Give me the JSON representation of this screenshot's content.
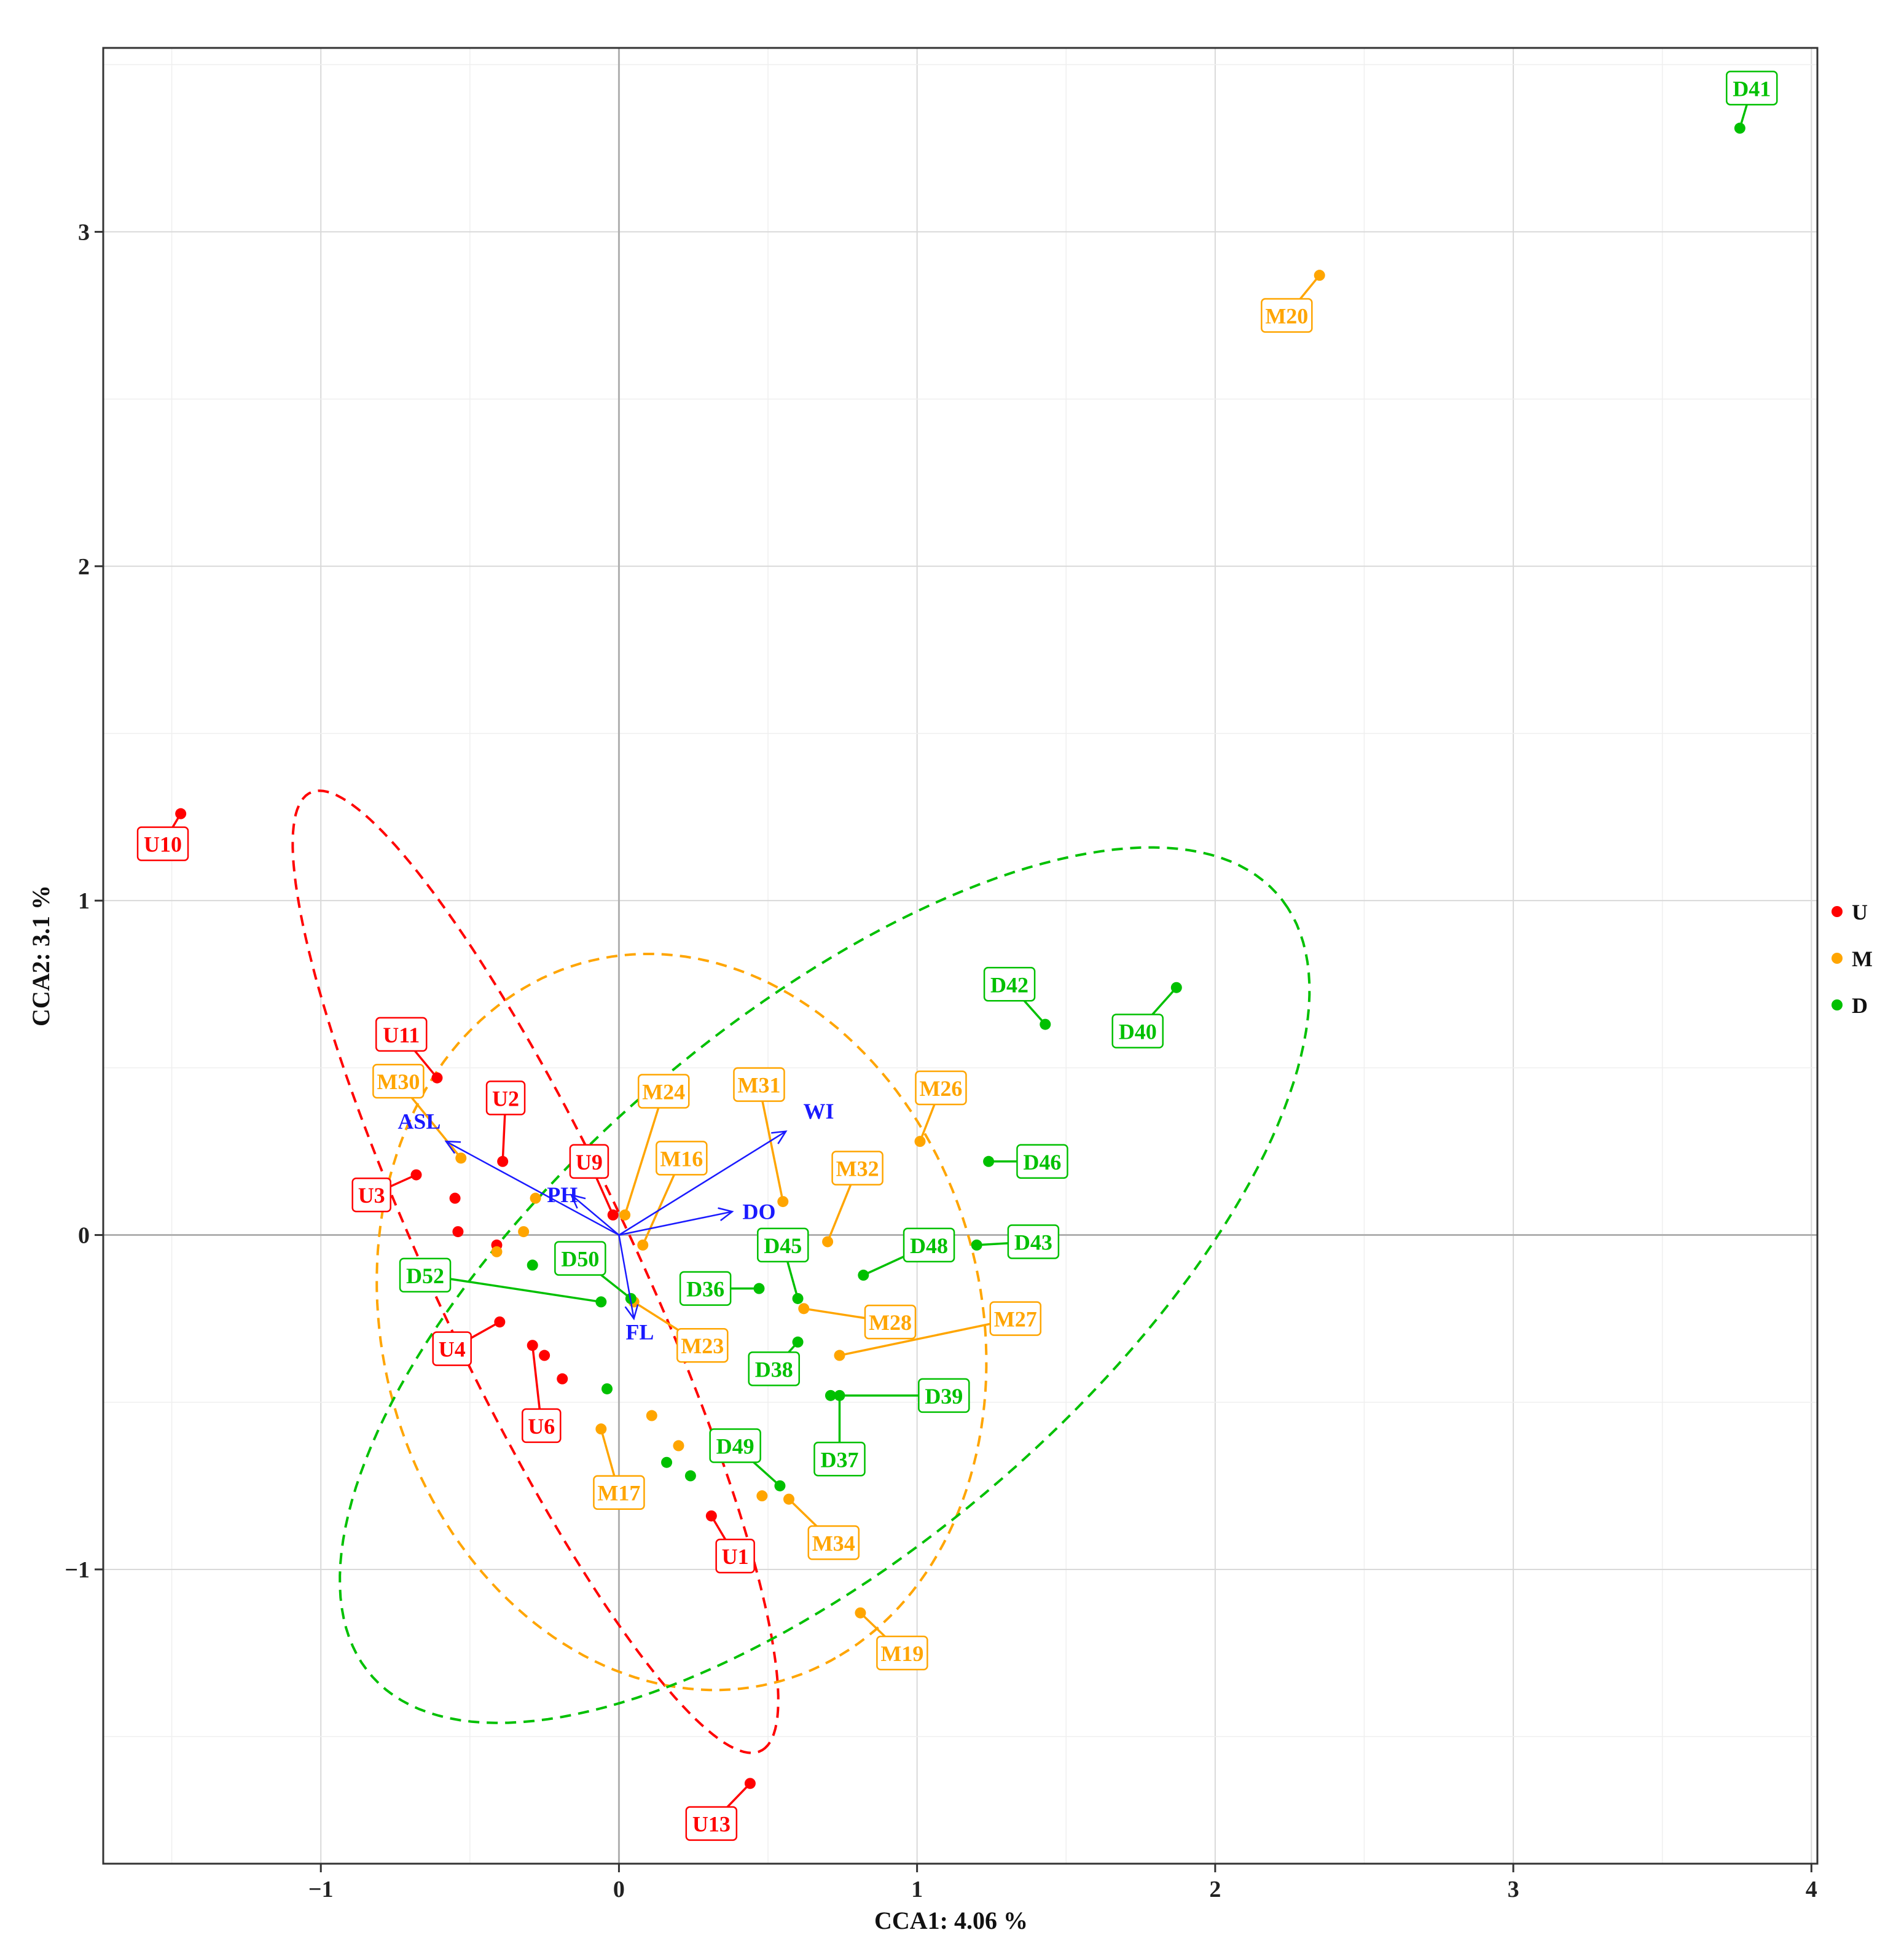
{
  "chart_data": {
    "type": "scatter",
    "title": "",
    "xlabel": "CCA1: 4.06 %",
    "ylabel": "CCA2: 3.1 %",
    "xlim": [
      -1.73,
      4.02
    ],
    "ylim": [
      -1.88,
      3.55
    ],
    "xticks": [
      -1,
      0,
      1,
      2,
      3,
      4
    ],
    "xtick_labels": [
      "−1",
      "0",
      "1",
      "2",
      "3",
      "4"
    ],
    "yticks": [
      -1,
      0,
      1,
      2,
      3
    ],
    "ytick_labels": [
      "−1",
      "0",
      "1",
      "2",
      "3"
    ],
    "grid": true,
    "legend_position": "right",
    "groups": [
      {
        "name": "U",
        "color": "#ff0000"
      },
      {
        "name": "M",
        "color": "#ffa500"
      },
      {
        "name": "D",
        "color": "#00c000"
      }
    ],
    "points": [
      {
        "g": "U",
        "x": -1.47,
        "y": 1.26,
        "label": "U10",
        "lx": -1.53,
        "ly": 1.17
      },
      {
        "g": "U",
        "x": -0.61,
        "y": 0.47,
        "label": "U11",
        "lx": -0.73,
        "ly": 0.6
      },
      {
        "g": "U",
        "x": -0.39,
        "y": 0.22,
        "label": "U2",
        "lx": -0.38,
        "ly": 0.41
      },
      {
        "g": "U",
        "x": -0.68,
        "y": 0.18,
        "label": "U3",
        "lx": -0.83,
        "ly": 0.12
      },
      {
        "g": "U",
        "x": -0.55,
        "y": 0.11,
        "label": "",
        "lx": null,
        "ly": null
      },
      {
        "g": "U",
        "x": -0.54,
        "y": 0.01,
        "label": "",
        "lx": null,
        "ly": null
      },
      {
        "g": "U",
        "x": -0.41,
        "y": -0.03,
        "label": "",
        "lx": null,
        "ly": null
      },
      {
        "g": "U",
        "x": -0.02,
        "y": 0.06,
        "label": "U9",
        "lx": -0.1,
        "ly": 0.22
      },
      {
        "g": "U",
        "x": -0.4,
        "y": -0.26,
        "label": "U4",
        "lx": -0.56,
        "ly": -0.34
      },
      {
        "g": "U",
        "x": -0.29,
        "y": -0.33,
        "label": "U6",
        "lx": -0.26,
        "ly": -0.57
      },
      {
        "g": "U",
        "x": -0.25,
        "y": -0.36,
        "label": "",
        "lx": null,
        "ly": null
      },
      {
        "g": "U",
        "x": -0.19,
        "y": -0.43,
        "label": "",
        "lx": null,
        "ly": null
      },
      {
        "g": "U",
        "x": 0.31,
        "y": -0.84,
        "label": "U1",
        "lx": 0.39,
        "ly": -0.96
      },
      {
        "g": "U",
        "x": 0.44,
        "y": -1.64,
        "label": "U13",
        "lx": 0.31,
        "ly": -1.76
      },
      {
        "g": "M",
        "x": 2.35,
        "y": 2.87,
        "label": "M20",
        "lx": 2.24,
        "ly": 2.75
      },
      {
        "g": "M",
        "x": -0.53,
        "y": 0.23,
        "label": "M30",
        "lx": -0.74,
        "ly": 0.46
      },
      {
        "g": "M",
        "x": 0.02,
        "y": 0.06,
        "label": "M24",
        "lx": 0.15,
        "ly": 0.43
      },
      {
        "g": "M",
        "x": 0.55,
        "y": 0.1,
        "label": "M31",
        "lx": 0.47,
        "ly": 0.45
      },
      {
        "g": "M",
        "x": 1.01,
        "y": 0.28,
        "label": "M26",
        "lx": 1.08,
        "ly": 0.44
      },
      {
        "g": "M",
        "x": 0.08,
        "y": -0.03,
        "label": "M16",
        "lx": 0.21,
        "ly": 0.23
      },
      {
        "g": "M",
        "x": 0.7,
        "y": -0.02,
        "label": "M32",
        "lx": 0.8,
        "ly": 0.2
      },
      {
        "g": "M",
        "x": -0.28,
        "y": 0.11,
        "label": "",
        "lx": null,
        "ly": null
      },
      {
        "g": "M",
        "x": -0.32,
        "y": 0.01,
        "label": "",
        "lx": null,
        "ly": null
      },
      {
        "g": "M",
        "x": -0.41,
        "y": -0.05,
        "label": "",
        "lx": null,
        "ly": null
      },
      {
        "g": "M",
        "x": 0.05,
        "y": -0.2,
        "label": "M23",
        "lx": 0.28,
        "ly": -0.33
      },
      {
        "g": "M",
        "x": 0.62,
        "y": -0.22,
        "label": "M28",
        "lx": 0.91,
        "ly": -0.26
      },
      {
        "g": "M",
        "x": 0.74,
        "y": -0.36,
        "label": "M27",
        "lx": 1.33,
        "ly": -0.25
      },
      {
        "g": "M",
        "x": 0.11,
        "y": -0.54,
        "label": "",
        "lx": null,
        "ly": null
      },
      {
        "g": "M",
        "x": 0.2,
        "y": -0.63,
        "label": "",
        "lx": null,
        "ly": null
      },
      {
        "g": "M",
        "x": -0.06,
        "y": -0.58,
        "label": "M17",
        "lx": 0.0,
        "ly": -0.77
      },
      {
        "g": "M",
        "x": 0.48,
        "y": -0.78,
        "label": "",
        "lx": null,
        "ly": null
      },
      {
        "g": "M",
        "x": 0.57,
        "y": -0.79,
        "label": "M34",
        "lx": 0.72,
        "ly": -0.92
      },
      {
        "g": "M",
        "x": 0.81,
        "y": -1.13,
        "label": "M19",
        "lx": 0.95,
        "ly": -1.25
      },
      {
        "g": "D",
        "x": 3.76,
        "y": 3.31,
        "label": "D41",
        "lx": 3.8,
        "ly": 3.43
      },
      {
        "g": "D",
        "x": 1.43,
        "y": 0.63,
        "label": "D42",
        "lx": 1.31,
        "ly": 0.75
      },
      {
        "g": "D",
        "x": 1.87,
        "y": 0.74,
        "label": "D40",
        "lx": 1.74,
        "ly": 0.61
      },
      {
        "g": "D",
        "x": 1.24,
        "y": 0.22,
        "label": "D46",
        "lx": 1.42,
        "ly": 0.22
      },
      {
        "g": "D",
        "x": 1.2,
        "y": -0.03,
        "label": "D43",
        "lx": 1.39,
        "ly": -0.02
      },
      {
        "g": "D",
        "x": 0.82,
        "y": -0.12,
        "label": "D48",
        "lx": 1.04,
        "ly": -0.03
      },
      {
        "g": "D",
        "x": 0.6,
        "y": -0.19,
        "label": "D45",
        "lx": 0.55,
        "ly": -0.03
      },
      {
        "g": "D",
        "x": 0.47,
        "y": -0.16,
        "label": "D36",
        "lx": 0.29,
        "ly": -0.16
      },
      {
        "g": "D",
        "x": -0.29,
        "y": -0.09,
        "label": "",
        "lx": null,
        "ly": null
      },
      {
        "g": "D",
        "x": -0.06,
        "y": -0.2,
        "label": "D52",
        "lx": -0.65,
        "ly": -0.12
      },
      {
        "g": "D",
        "x": 0.04,
        "y": -0.19,
        "label": "D50",
        "lx": -0.13,
        "ly": -0.07
      },
      {
        "g": "D",
        "x": 0.6,
        "y": -0.32,
        "label": "D38",
        "lx": 0.52,
        "ly": -0.4
      },
      {
        "g": "D",
        "x": 0.71,
        "y": -0.48,
        "label": "D39",
        "lx": 1.09,
        "ly": -0.48
      },
      {
        "g": "D",
        "x": 0.74,
        "y": -0.48,
        "label": "D37",
        "lx": 0.74,
        "ly": -0.67
      },
      {
        "g": "D",
        "x": -0.04,
        "y": -0.46,
        "label": "",
        "lx": null,
        "ly": null
      },
      {
        "g": "D",
        "x": 0.16,
        "y": -0.68,
        "label": "",
        "lx": null,
        "ly": null
      },
      {
        "g": "D",
        "x": 0.24,
        "y": -0.72,
        "label": "",
        "lx": null,
        "ly": null
      },
      {
        "g": "D",
        "x": 0.54,
        "y": -0.75,
        "label": "D49",
        "lx": 0.39,
        "ly": -0.63
      }
    ],
    "ellipses": [
      {
        "g": "U",
        "cx": -0.28,
        "cy": -0.11,
        "rx": 1.62,
        "ry": 0.33,
        "angle_deg": -62
      },
      {
        "g": "M",
        "cx": 0.21,
        "cy": -0.26,
        "rx": 1.13,
        "ry": 0.99,
        "angle_deg": -62
      },
      {
        "g": "D",
        "cx": 0.69,
        "cy": -0.15,
        "rx": 1.92,
        "ry": 0.82,
        "angle_deg": 36
      }
    ],
    "arrows": [
      {
        "name": "ASL",
        "x": -0.58,
        "y": 0.28,
        "lx": -0.67,
        "ly": 0.34
      },
      {
        "name": "PH",
        "x": -0.16,
        "y": 0.12,
        "lx": -0.19,
        "ly": 0.12
      },
      {
        "name": "WI",
        "x": 0.56,
        "y": 0.31,
        "lx": 0.67,
        "ly": 0.37
      },
      {
        "name": "DO",
        "x": 0.38,
        "y": 0.07,
        "lx": 0.47,
        "ly": 0.07
      },
      {
        "name": "FL",
        "x": 0.05,
        "y": -0.25,
        "lx": 0.07,
        "ly": -0.29
      }
    ]
  }
}
